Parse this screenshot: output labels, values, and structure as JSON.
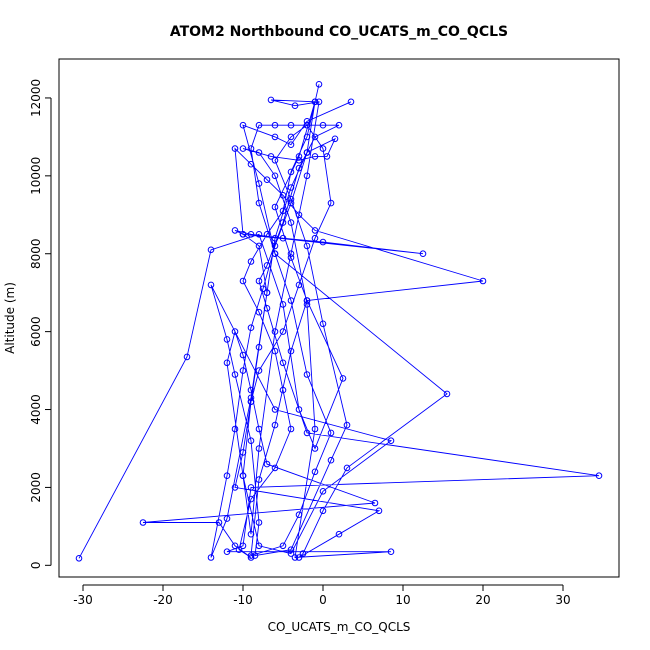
{
  "chart_data": {
    "type": "line",
    "title": "ATOM2 Northbound CO_UCATS_m_CO_QCLS",
    "xlabel": "CO_UCATS_m_CO_QCLS",
    "ylabel": "Altitude (m)",
    "xlim": [
      -33,
      37
    ],
    "ylim": [
      -300,
      13000
    ],
    "xticks": [
      -30,
      -20,
      -10,
      0,
      10,
      20,
      30
    ],
    "yticks": [
      0,
      2000,
      4000,
      6000,
      8000,
      10000,
      12000
    ],
    "line_color": "#0000ff",
    "grid": false,
    "series": [
      {
        "name": "",
        "points": [
          [
            -30.5,
            180
          ],
          [
            -17,
            5350
          ],
          [
            -14,
            8100
          ],
          [
            -8,
            8500
          ],
          [
            -5,
            6700
          ],
          [
            -3,
            4000
          ],
          [
            -1,
            3000
          ],
          [
            2.5,
            4800
          ],
          [
            -2,
            6800
          ],
          [
            -4,
            7900
          ],
          [
            -6,
            9200
          ],
          [
            -3,
            10500
          ],
          [
            -1,
            11900
          ],
          [
            -0.5,
            12350
          ],
          [
            -2,
            11000
          ],
          [
            -4,
            10100
          ],
          [
            -5,
            9100
          ],
          [
            -7,
            8500
          ],
          [
            -9,
            7800
          ],
          [
            -10,
            7300
          ],
          [
            -8,
            6500
          ],
          [
            -6,
            5500
          ],
          [
            -5,
            4500
          ],
          [
            -4,
            3500
          ],
          [
            -6,
            2500
          ],
          [
            -9,
            1700
          ],
          [
            -10.5,
            400
          ],
          [
            -9,
            200
          ],
          [
            -11,
            500
          ],
          [
            -13,
            1100
          ],
          [
            -22.5,
            1100
          ],
          [
            6.5,
            1600
          ],
          [
            -7,
            2600
          ],
          [
            -8,
            3500
          ],
          [
            -9,
            4500
          ],
          [
            -10,
            5400
          ],
          [
            -11,
            6000
          ],
          [
            -12,
            5200
          ],
          [
            -10,
            2300
          ],
          [
            -8,
            500
          ],
          [
            -4,
            300
          ],
          [
            0,
            1900
          ],
          [
            8.5,
            3200
          ],
          [
            -6,
            4000
          ],
          [
            -14,
            7200
          ],
          [
            -12,
            5800
          ],
          [
            -11,
            4900
          ],
          [
            -9,
            3200
          ],
          [
            -8,
            1100
          ],
          [
            -8.5,
            250
          ],
          [
            -4,
            400
          ],
          [
            1,
            2700
          ],
          [
            3,
            3600
          ],
          [
            0,
            6200
          ],
          [
            -2,
            8200
          ],
          [
            -4,
            9400
          ],
          [
            -6,
            10400
          ],
          [
            -4,
            11000
          ],
          [
            -2,
            11300
          ],
          [
            0,
            10700
          ],
          [
            1,
            9300
          ],
          [
            -1,
            8400
          ],
          [
            -3,
            7200
          ],
          [
            -5,
            6000
          ],
          [
            -8,
            5000
          ],
          [
            -9,
            4200
          ],
          [
            -10,
            2300
          ],
          [
            -9,
            800
          ],
          [
            -8,
            3000
          ],
          [
            -6,
            6000
          ],
          [
            -4,
            8000
          ],
          [
            -2,
            10000
          ],
          [
            -0.5,
            11900
          ],
          [
            -3.5,
            11800
          ],
          [
            -6.5,
            11950
          ],
          [
            -1,
            11900
          ],
          [
            -2,
            10600
          ],
          [
            -4,
            9300
          ],
          [
            -6,
            8200
          ],
          [
            -7.5,
            7100
          ],
          [
            -9,
            6100
          ],
          [
            -10,
            5000
          ],
          [
            -11,
            3500
          ],
          [
            -12,
            2300
          ],
          [
            -14,
            200
          ],
          [
            -12,
            1200
          ],
          [
            -9,
            4300
          ],
          [
            -7,
            7000
          ],
          [
            -8,
            8200
          ],
          [
            -10,
            8500
          ],
          [
            -11,
            8600
          ],
          [
            -9,
            8500
          ],
          [
            -5,
            8400
          ],
          [
            0,
            8300
          ],
          [
            12.5,
            8000
          ],
          [
            -10,
            8500
          ],
          [
            -11,
            10700
          ],
          [
            -9,
            10300
          ],
          [
            -7,
            9900
          ],
          [
            -5,
            9500
          ],
          [
            -3,
            9000
          ],
          [
            -1,
            8600
          ],
          [
            20,
            7300
          ],
          [
            -2,
            6800
          ],
          [
            -4,
            5500
          ],
          [
            -6,
            3600
          ],
          [
            -8,
            2200
          ],
          [
            -9,
            250
          ],
          [
            -5,
            500
          ],
          [
            -3,
            1300
          ],
          [
            -1,
            2400
          ],
          [
            1,
            3400
          ],
          [
            -2,
            4900
          ],
          [
            -4,
            6800
          ],
          [
            -6,
            8000
          ],
          [
            -8,
            9300
          ],
          [
            -9,
            10700
          ],
          [
            -8,
            11300
          ],
          [
            -6,
            11300
          ],
          [
            -4,
            11300
          ],
          [
            -2,
            11300
          ],
          [
            0,
            11300
          ],
          [
            2,
            11300
          ],
          [
            -1,
            11000
          ],
          [
            -3,
            10200
          ],
          [
            -5,
            8800
          ],
          [
            -7,
            7700
          ],
          [
            -8,
            7300
          ],
          [
            -7,
            6600
          ],
          [
            -5,
            5200
          ],
          [
            -2,
            3400
          ],
          [
            34.5,
            2300
          ],
          [
            -9,
            2000
          ],
          [
            -10,
            500
          ],
          [
            -12,
            350
          ],
          [
            8.5,
            350
          ],
          [
            -3.5,
            200
          ],
          [
            -1,
            3500
          ],
          [
            -2,
            6700
          ],
          [
            -4,
            8800
          ],
          [
            -6,
            10000
          ],
          [
            -8,
            10600
          ],
          [
            -10,
            10700
          ],
          [
            -6.5,
            10500
          ],
          [
            -3,
            10400
          ],
          [
            -1,
            10500
          ],
          [
            0.5,
            10500
          ],
          [
            1.5,
            10950
          ],
          [
            -2,
            10600
          ],
          [
            -4,
            9700
          ],
          [
            -6,
            8400
          ],
          [
            -7,
            7000
          ],
          [
            -8,
            5600
          ],
          [
            -9,
            4200
          ],
          [
            -10,
            2900
          ],
          [
            -11,
            2000
          ],
          [
            7,
            1400
          ],
          [
            2,
            800
          ],
          [
            -3,
            200
          ],
          [
            -2.5,
            300
          ],
          [
            0,
            1400
          ],
          [
            3,
            2500
          ],
          [
            15.5,
            4400
          ],
          [
            -6,
            8000
          ],
          [
            -8,
            9800
          ],
          [
            -10,
            11300
          ],
          [
            -6,
            11000
          ],
          [
            -4,
            10800
          ],
          [
            -2,
            11400
          ],
          [
            3.5,
            11900
          ]
        ]
      }
    ]
  }
}
